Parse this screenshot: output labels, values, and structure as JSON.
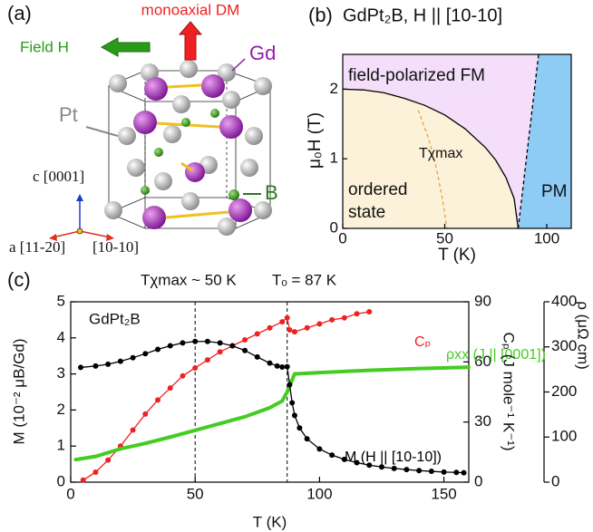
{
  "diagram": {
    "label": "(a)",
    "dm_label": "monoaxial DM",
    "field_label": "Field H",
    "atoms": [
      "Gd",
      "Pt",
      "B"
    ],
    "axes": [
      "c [0001]",
      "a [11-20]",
      "[10-10]"
    ]
  },
  "chart_data": [
    {
      "type": "phase",
      "label": "(b)",
      "title": "GdPt₂B, H || [10-10]",
      "xlabel": "T (K)",
      "ylabel": "μ₀H (T)",
      "xlim": [
        0,
        112
      ],
      "ylim": [
        0,
        2.5
      ],
      "xticks": [
        0,
        50,
        100
      ],
      "yticks": [
        0,
        1,
        2
      ],
      "region_labels": {
        "fm": "field-polarized FM",
        "ordered": [
          "ordered",
          "state"
        ],
        "pm": "PM"
      },
      "region_colors": {
        "fm": "#f4defa",
        "ordered": "#fcf2da",
        "pm": "#8ecbf5"
      },
      "annotation": "Tχmax",
      "series": [
        {
          "color": "#000000",
          "style": "solid",
          "x": [
            0,
            10,
            20,
            30,
            40,
            50,
            60,
            70,
            75,
            80,
            84,
            86
          ],
          "values": [
            2.0,
            1.99,
            1.95,
            1.87,
            1.77,
            1.63,
            1.43,
            1.16,
            0.98,
            0.73,
            0.43,
            0
          ]
        },
        {
          "color": "#000000",
          "style": "dashed",
          "x": [
            86,
            88,
            90,
            92,
            94,
            96
          ],
          "values": [
            0,
            0.5,
            1.0,
            1.5,
            2.0,
            2.5
          ]
        },
        {
          "color": "#f0a040",
          "style": "dashed",
          "x": [
            37,
            42,
            46,
            49,
            51
          ],
          "values": [
            1.7,
            1.3,
            0.85,
            0.4,
            0
          ]
        }
      ]
    },
    {
      "type": "line",
      "label": "(c)",
      "name": "GdPt₂B",
      "xlabel": "T (K)",
      "ylabel": "M (10⁻² μB/Gd)",
      "y2label": "Cₚ (J mole⁻¹ K⁻¹)",
      "y3label": "ρ (μΩ cm)",
      "annotations": [
        "Tχmax ~ 50 K",
        "Tₒ = 87 K"
      ],
      "vlines": [
        50,
        87
      ],
      "xlim": [
        0,
        160
      ],
      "ylim": [
        0,
        5
      ],
      "y2lim": [
        0,
        90
      ],
      "y3lim": [
        0,
        400
      ],
      "xticks": [
        0,
        50,
        100,
        150
      ],
      "yticks": [
        0,
        1,
        2,
        3,
        4,
        5
      ],
      "y2ticks": [
        0,
        30,
        60,
        90
      ],
      "y3ticks": [
        0,
        100,
        200,
        300,
        400
      ],
      "series": [
        {
          "name": "Cₚ",
          "color": "#ee2222",
          "axis": "y2",
          "x": [
            5,
            10,
            15,
            20,
            25,
            30,
            35,
            40,
            45,
            50,
            55,
            60,
            65,
            70,
            75,
            80,
            85,
            87,
            88,
            90,
            95,
            100,
            105,
            110,
            115,
            120
          ],
          "values": [
            1,
            5,
            11,
            18,
            26,
            34,
            41,
            47,
            53,
            57,
            61,
            65,
            68,
            71,
            74,
            77,
            80,
            82,
            76,
            75,
            77,
            79,
            81,
            82,
            84,
            85
          ]
        },
        {
          "name": "ρxx (J || [0001])",
          "color": "#44cc22",
          "axis": "y3",
          "x": [
            2,
            10,
            20,
            30,
            40,
            50,
            60,
            70,
            80,
            85,
            87,
            90,
            100,
            120,
            140,
            160
          ],
          "values": [
            50,
            57,
            74,
            86,
            100,
            115,
            130,
            145,
            165,
            180,
            200,
            240,
            243,
            248,
            252,
            255
          ]
        },
        {
          "name": "M (H || [10-10])",
          "color": "#000000",
          "x": [
            4,
            10,
            15,
            20,
            25,
            30,
            35,
            40,
            45,
            50,
            55,
            60,
            65,
            70,
            75,
            80,
            83,
            85,
            87,
            88,
            89,
            90,
            92,
            95,
            100,
            105,
            110,
            115,
            120,
            125,
            130,
            135,
            140,
            145,
            150,
            155,
            158
          ],
          "values": [
            3.18,
            3.22,
            3.27,
            3.35,
            3.45,
            3.56,
            3.68,
            3.78,
            3.86,
            3.9,
            3.9,
            3.86,
            3.78,
            3.65,
            3.47,
            3.3,
            3.22,
            3.19,
            3.2,
            2.7,
            2.2,
            1.85,
            1.5,
            1.2,
            0.92,
            0.75,
            0.63,
            0.54,
            0.47,
            0.42,
            0.38,
            0.35,
            0.32,
            0.3,
            0.28,
            0.27,
            0.26
          ]
        }
      ]
    }
  ]
}
